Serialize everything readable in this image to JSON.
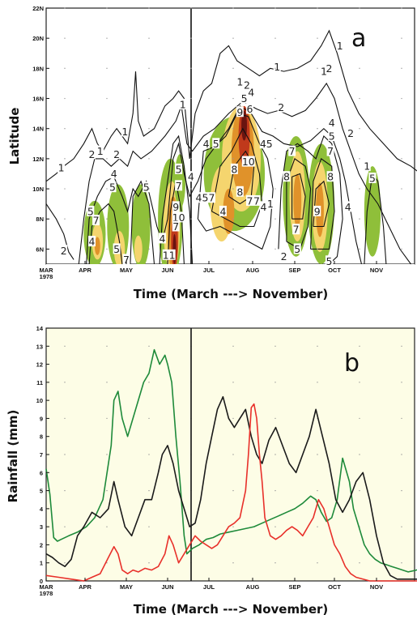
{
  "chart_data": [
    {
      "panel": "a",
      "type": "heatmap",
      "xlabel": "Time (March ---> November)",
      "ylabel": "Latitude",
      "x_ticks": [
        "MAR\n1978",
        "APR",
        "MAY",
        "JUN",
        "JUL",
        "AUG",
        "SEP",
        "OCT",
        "NOV"
      ],
      "y_ticks": [
        "6N",
        "8N",
        "10N",
        "12N",
        "14N",
        "16N",
        "18N",
        "20N",
        "22N"
      ],
      "ylim": [
        5,
        22
      ],
      "fill_colors": [
        "#8fbf3a",
        "#f5d56e",
        "#e0922a",
        "#c0391b",
        "#6a1410"
      ],
      "contour_labels": [
        {
          "text": "1",
          "day": 12,
          "lat": 11.4
        },
        {
          "text": "2",
          "day": 14,
          "lat": 5.9
        },
        {
          "text": "2",
          "day": 36,
          "lat": 12.3
        },
        {
          "text": "1",
          "day": 42,
          "lat": 12.5
        },
        {
          "text": "2",
          "day": 54,
          "lat": 12.3
        },
        {
          "text": "4",
          "day": 52,
          "lat": 11.0
        },
        {
          "text": "5",
          "day": 51,
          "lat": 10.1
        },
        {
          "text": "5",
          "day": 35,
          "lat": 8.5
        },
        {
          "text": "7",
          "day": 39,
          "lat": 7.9
        },
        {
          "text": "4",
          "day": 36,
          "lat": 6.5
        },
        {
          "text": "5",
          "day": 54,
          "lat": 6.0
        },
        {
          "text": "7",
          "day": 61,
          "lat": 5.3
        },
        {
          "text": "1",
          "day": 60,
          "lat": 13.8
        },
        {
          "text": "1",
          "day": 103,
          "lat": 15.6
        },
        {
          "text": "5",
          "day": 100,
          "lat": 11.3
        },
        {
          "text": "5",
          "day": 76,
          "lat": 10.1
        },
        {
          "text": "7",
          "day": 100,
          "lat": 10.2
        },
        {
          "text": "4",
          "day": 88,
          "lat": 6.7
        },
        {
          "text": "11",
          "day": 93,
          "lat": 5.6
        },
        {
          "text": "10",
          "day": 100,
          "lat": 8.1
        },
        {
          "text": "9",
          "day": 98,
          "lat": 8.8
        },
        {
          "text": "7",
          "day": 98,
          "lat": 7.5
        },
        {
          "text": "4",
          "day": 109,
          "lat": 10.8
        },
        {
          "text": "45",
          "day": 117,
          "lat": 9.4
        },
        {
          "text": "4",
          "day": 120,
          "lat": 13.0
        },
        {
          "text": "5",
          "day": 127,
          "lat": 13.0
        },
        {
          "text": "7",
          "day": 124,
          "lat": 9.4
        },
        {
          "text": "4",
          "day": 132,
          "lat": 8.5
        },
        {
          "text": "8",
          "day": 140,
          "lat": 11.3
        },
        {
          "text": "10",
          "day": 150,
          "lat": 11.8
        },
        {
          "text": "8",
          "day": 144,
          "lat": 9.8
        },
        {
          "text": "7",
          "day": 151,
          "lat": 9.2
        },
        {
          "text": "7",
          "day": 156,
          "lat": 9.2
        },
        {
          "text": "4",
          "day": 161,
          "lat": 8.8
        },
        {
          "text": "9",
          "day": 144,
          "lat": 15.1
        },
        {
          "text": "6",
          "day": 151,
          "lat": 15.3
        },
        {
          "text": "5",
          "day": 147,
          "lat": 16.0
        },
        {
          "text": "4",
          "day": 152,
          "lat": 16.4
        },
        {
          "text": "2",
          "day": 149,
          "lat": 16.9
        },
        {
          "text": "1",
          "day": 144,
          "lat": 17.1
        },
        {
          "text": "45",
          "day": 163,
          "lat": 13.0
        },
        {
          "text": "2",
          "day": 174,
          "lat": 15.4
        },
        {
          "text": "1",
          "day": 171,
          "lat": 18.1
        },
        {
          "text": "1",
          "day": 206,
          "lat": 17.8
        },
        {
          "text": "2",
          "day": 210,
          "lat": 18.0
        },
        {
          "text": "1",
          "day": 218,
          "lat": 19.5
        },
        {
          "text": "4",
          "day": 212,
          "lat": 14.4
        },
        {
          "text": "5",
          "day": 212,
          "lat": 13.5
        },
        {
          "text": "7",
          "day": 182,
          "lat": 12.5
        },
        {
          "text": "7",
          "day": 211,
          "lat": 12.5
        },
        {
          "text": "8",
          "day": 178,
          "lat": 10.8
        },
        {
          "text": "8",
          "day": 211,
          "lat": 10.8
        },
        {
          "text": "9",
          "day": 201,
          "lat": 8.5
        },
        {
          "text": "4",
          "day": 224,
          "lat": 8.8
        },
        {
          "text": "7",
          "day": 185,
          "lat": 7.3
        },
        {
          "text": "5",
          "day": 186,
          "lat": 6.0
        },
        {
          "text": "5",
          "day": 210,
          "lat": 5.2
        },
        {
          "text": "2",
          "day": 226,
          "lat": 13.7
        },
        {
          "text": "1",
          "day": 238,
          "lat": 11.5
        },
        {
          "text": "5",
          "day": 242,
          "lat": 10.7
        },
        {
          "text": "1",
          "day": 166,
          "lat": 9.0
        },
        {
          "text": "2",
          "day": 176,
          "lat": 5.5
        }
      ]
    },
    {
      "panel": "b",
      "type": "line",
      "xlabel": "Time (March ---> November)",
      "ylabel": "Rainfall (mm)",
      "x_ticks": [
        "MAR\n1978",
        "APR",
        "MAY",
        "JUN",
        "JUL",
        "AUG",
        "SEP",
        "OCT",
        "NOV"
      ],
      "ylim": [
        0,
        14
      ],
      "y_ticks": [
        "0",
        "1",
        "2",
        "3",
        "4",
        "5",
        "6",
        "7",
        "8",
        "9",
        "10",
        "11",
        "12",
        "13",
        "14"
      ],
      "x_unit": "day since 1 March",
      "series": [
        {
          "color": "#1e8a3a",
          "x": [
            0,
            3,
            6,
            9,
            12,
            18,
            25,
            32,
            38,
            44,
            50,
            52,
            55,
            58,
            62,
            66,
            70,
            74,
            78,
            82,
            86,
            90,
            92,
            95,
            98,
            101,
            104,
            106,
            110,
            115,
            120,
            125,
            130,
            136,
            142,
            148,
            154,
            160,
            166,
            172,
            178,
            184,
            190,
            196,
            200,
            204,
            208,
            212,
            216,
            220,
            225,
            228,
            232,
            236,
            240,
            244,
            248,
            252,
            256,
            260,
            264,
            268,
            274,
            280
          ],
          "y": [
            6.2,
            4.8,
            2.4,
            2.2,
            2.3,
            2.5,
            2.7,
            3.0,
            3.5,
            4.5,
            7.5,
            10.0,
            10.5,
            9.0,
            8.0,
            9.0,
            10.0,
            11.0,
            11.5,
            12.8,
            12.0,
            12.5,
            12.0,
            11.0,
            8.0,
            5.5,
            2.5,
            1.5,
            1.8,
            2.0,
            2.3,
            2.4,
            2.6,
            2.7,
            2.8,
            2.9,
            3.0,
            3.2,
            3.4,
            3.6,
            3.8,
            4.0,
            4.3,
            4.7,
            4.5,
            3.8,
            3.3,
            3.5,
            4.5,
            6.8,
            5.5,
            4.0,
            3.0,
            2.0,
            1.5,
            1.2,
            1.0,
            0.9,
            0.8,
            0.7,
            0.6,
            0.5,
            0.6,
            0.8
          ]
        },
        {
          "color": "#1a1a1a",
          "x": [
            0,
            5,
            10,
            15,
            20,
            25,
            30,
            36,
            42,
            48,
            52,
            55,
            60,
            65,
            70,
            75,
            80,
            85,
            88,
            92,
            96,
            100,
            104,
            108,
            112,
            116,
            120,
            124,
            128,
            132,
            136,
            140,
            144,
            148,
            152,
            156,
            160,
            165,
            170,
            175,
            180,
            185,
            190,
            195,
            200,
            205,
            210,
            215,
            220,
            225,
            230,
            235,
            240,
            245,
            250,
            255,
            260,
            265,
            270,
            275,
            280
          ],
          "y": [
            1.5,
            1.3,
            1.0,
            0.8,
            1.2,
            2.5,
            3.0,
            3.8,
            3.5,
            4.0,
            5.5,
            4.5,
            3.0,
            2.5,
            3.5,
            4.5,
            4.5,
            6.0,
            7.0,
            7.5,
            6.5,
            5.0,
            4.0,
            3.0,
            3.2,
            4.5,
            6.5,
            8.0,
            9.5,
            10.2,
            9.0,
            8.5,
            9.0,
            9.5,
            8.0,
            7.0,
            6.5,
            7.8,
            8.5,
            7.5,
            6.5,
            6.0,
            7.0,
            8.0,
            9.5,
            8.0,
            6.5,
            4.5,
            3.8,
            4.5,
            5.5,
            6.0,
            4.5,
            2.5,
            1.0,
            0.3,
            0.1,
            0.1,
            0.1,
            0.1,
            0.1
          ]
        },
        {
          "color": "#e8302a",
          "x": [
            0,
            10,
            20,
            30,
            36,
            42,
            48,
            52,
            55,
            58,
            62,
            66,
            70,
            75,
            80,
            85,
            90,
            93,
            96,
            100,
            104,
            108,
            112,
            116,
            120,
            124,
            128,
            132,
            136,
            140,
            144,
            148,
            150,
            152,
            154,
            156,
            158,
            160,
            162,
            166,
            170,
            174,
            178,
            182,
            186,
            190,
            194,
            198,
            202,
            206,
            210,
            214,
            218,
            222,
            226,
            230,
            240,
            250,
            260,
            270,
            280
          ],
          "y": [
            0.3,
            0.2,
            0.1,
            0.0,
            0.2,
            0.4,
            1.3,
            1.9,
            1.5,
            0.6,
            0.4,
            0.6,
            0.5,
            0.7,
            0.6,
            0.8,
            1.5,
            2.5,
            2.0,
            1.0,
            1.5,
            2.0,
            2.5,
            2.2,
            2.0,
            1.8,
            2.0,
            2.5,
            3.0,
            3.2,
            3.5,
            5.0,
            7.0,
            9.6,
            9.8,
            9.0,
            7.0,
            5.5,
            3.5,
            2.5,
            2.3,
            2.5,
            2.8,
            3.0,
            2.8,
            2.5,
            3.0,
            3.5,
            4.5,
            4.0,
            3.0,
            2.0,
            1.5,
            0.8,
            0.4,
            0.2,
            0.0,
            0.0,
            0.0,
            0.0,
            0.0
          ]
        }
      ]
    }
  ],
  "colors": {
    "green": "#1e8a3a",
    "black": "#1a1a1a",
    "red": "#e8302a",
    "panel_a_bg": "#ffffff",
    "panel_b_bg": "#fdfde6"
  }
}
